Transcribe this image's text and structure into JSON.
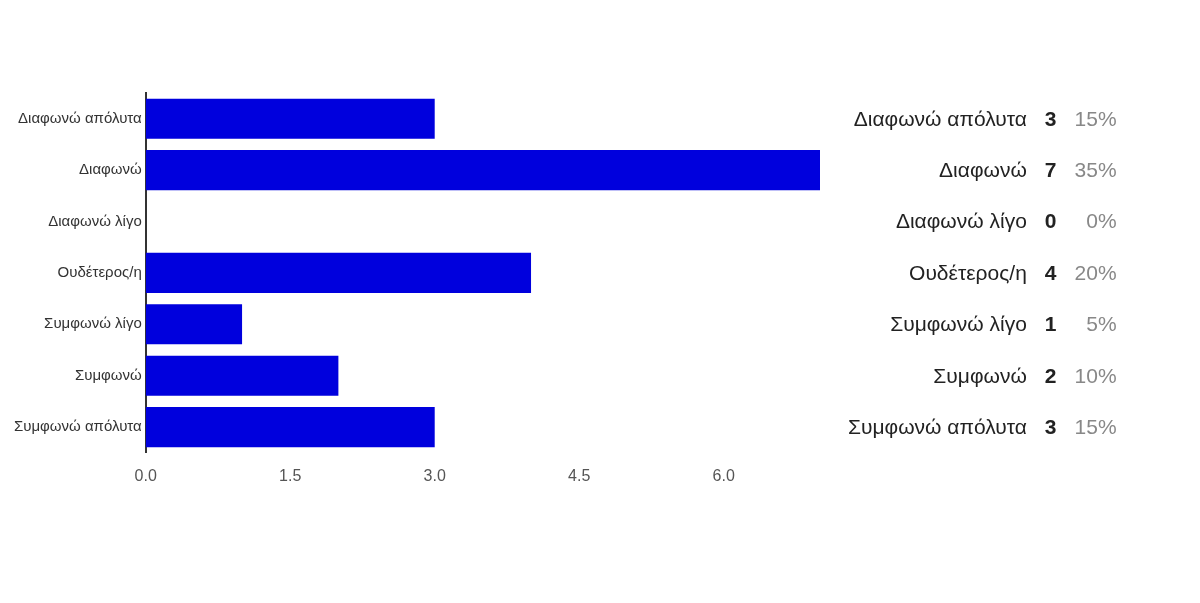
{
  "chart_data": {
    "type": "bar",
    "orientation": "horizontal",
    "categories": [
      "Διαφωνώ απόλυτα",
      "Διαφωνώ",
      "Διαφωνώ λίγο",
      "Ουδέτερος/η",
      "Συμφωνώ λίγο",
      "Συμφωνώ",
      "Συμφωνώ απόλυτα"
    ],
    "values": [
      3,
      7,
      0,
      4,
      1,
      2,
      3
    ],
    "value_labels": [
      "3",
      "7",
      "0",
      "4",
      "1",
      "2",
      "3"
    ],
    "annotations": [
      "15%",
      "35%",
      "0%",
      "20%",
      "5%",
      "10%",
      "15%"
    ],
    "color": "#0000dd",
    "xlim": [
      0,
      7
    ],
    "xticks": [
      {
        "value": 0,
        "label": "0.0"
      },
      {
        "value": 1.5,
        "label": "1.5"
      },
      {
        "value": 3,
        "label": "3.0"
      },
      {
        "value": 4.5,
        "label": "4.5"
      },
      {
        "value": 6,
        "label": "6.0"
      }
    ],
    "grid": false,
    "legend": false
  }
}
